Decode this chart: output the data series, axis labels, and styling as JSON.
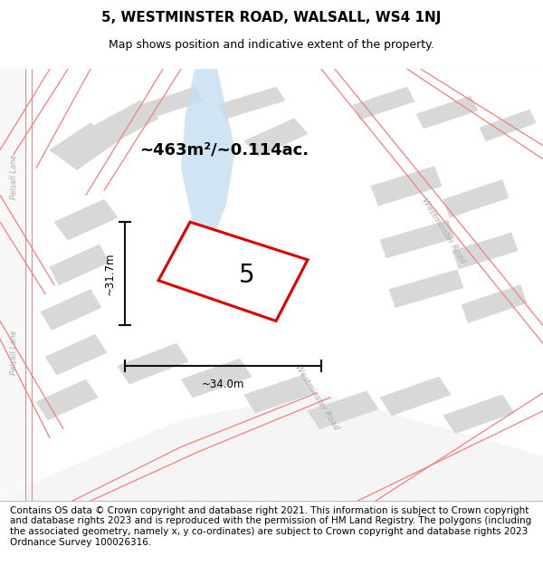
{
  "title": "5, WESTMINSTER ROAD, WALSALL, WS4 1NJ",
  "subtitle": "Map shows position and indicative extent of the property.",
  "area_label": "~463m²/~0.114ac.",
  "property_number": "5",
  "dim_horizontal": "~34.0m",
  "dim_vertical": "~31.7m",
  "footer": "Contains OS data © Crown copyright and database right 2021. This information is subject to Crown copyright and database rights 2023 and is reproduced with the permission of HM Land Registry. The polygons (including the associated geometry, namely x, y co-ordinates) are subject to Crown copyright and database rights 2023 Ordnance Survey 100026316.",
  "map_bg": "#efefef",
  "block_color": "#d8d8d8",
  "road_color": "#ffffff",
  "water_color": "#c5dff0",
  "red_line_color": "#f08080",
  "prop_edge_color": "#dd0000",
  "title_fontsize": 11,
  "subtitle_fontsize": 9,
  "footer_fontsize": 7.5,
  "road_label_color": "#aaaaaa",
  "dim_line_color": "#111111"
}
